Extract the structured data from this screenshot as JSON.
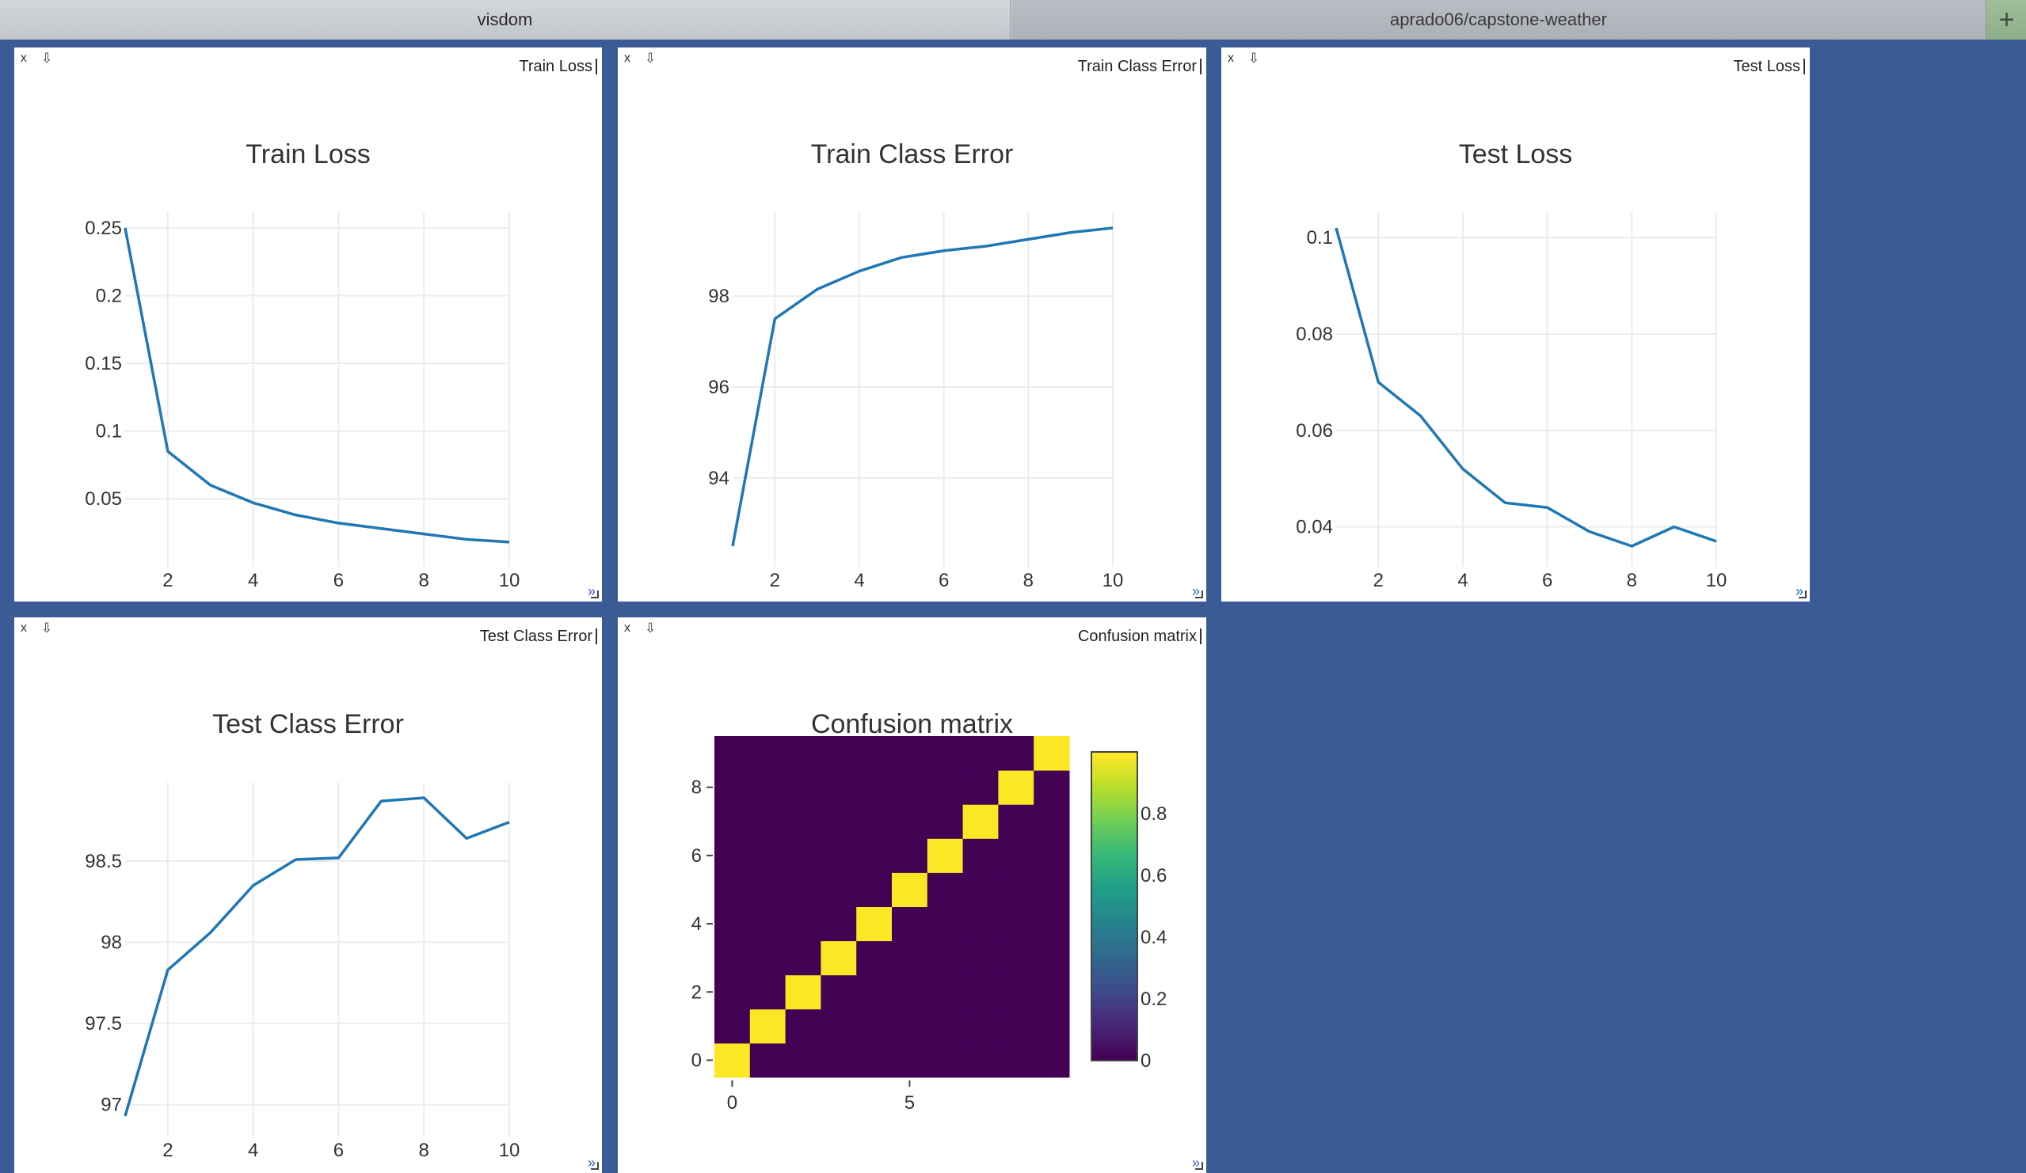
{
  "tabs": [
    {
      "label": "visdom"
    },
    {
      "label": "aprado06/capstone-weather"
    }
  ],
  "new_tab_label": "+",
  "pane_controls": {
    "close": "x",
    "download": "⇩",
    "resize": "»"
  },
  "panes": [
    {
      "window_title": "Train Loss"
    },
    {
      "window_title": "Train Class Error"
    },
    {
      "window_title": "Test Loss"
    },
    {
      "window_title": "Test Class Error"
    },
    {
      "window_title": "Confusion matrix"
    }
  ],
  "colors": {
    "line": "#1f77b4",
    "background": "#3b5b97"
  },
  "chart_data": [
    {
      "type": "line",
      "title": "Train Loss",
      "x": [
        1,
        2,
        3,
        4,
        5,
        6,
        7,
        8,
        9,
        10
      ],
      "series": [
        {
          "values": [
            0.25,
            0.085,
            0.06,
            0.047,
            0.038,
            0.032,
            0.028,
            0.024,
            0.02,
            0.018
          ]
        }
      ],
      "xlim": [
        1,
        10
      ],
      "ylim": [
        0.015,
        0.25
      ],
      "xticks": [
        2,
        4,
        6,
        8,
        10
      ],
      "yticks": [
        0.05,
        0.1,
        0.15,
        0.2,
        0.25
      ],
      "xtick_labels": [
        "2",
        "4",
        "6",
        "8",
        "10"
      ],
      "ytick_labels": [
        "0.05",
        "0.1",
        "0.15",
        "0.2",
        "0.25"
      ],
      "grid": true
    },
    {
      "type": "line",
      "title": "Train Class Error",
      "x": [
        1,
        2,
        3,
        4,
        5,
        6,
        7,
        8,
        9,
        10
      ],
      "series": [
        {
          "values": [
            92.5,
            97.5,
            98.15,
            98.55,
            98.85,
            99.0,
            99.1,
            99.25,
            99.4,
            99.5
          ]
        }
      ],
      "xlim": [
        1,
        10
      ],
      "ylim": [
        92.5,
        99.5
      ],
      "xticks": [
        2,
        4,
        6,
        8,
        10
      ],
      "yticks": [
        94,
        96,
        98
      ],
      "xtick_labels": [
        "2",
        "4",
        "6",
        "8",
        "10"
      ],
      "ytick_labels": [
        "94",
        "96",
        "98"
      ],
      "grid": true
    },
    {
      "type": "line",
      "title": "Test Loss",
      "x": [
        1,
        2,
        3,
        4,
        5,
        6,
        7,
        8,
        9,
        10
      ],
      "series": [
        {
          "values": [
            0.102,
            0.07,
            0.063,
            0.052,
            0.045,
            0.044,
            0.039,
            0.036,
            0.04,
            0.037
          ]
        }
      ],
      "xlim": [
        1,
        10
      ],
      "ylim": [
        0.036,
        0.102
      ],
      "xticks": [
        2,
        4,
        6,
        8,
        10
      ],
      "yticks": [
        0.04,
        0.06,
        0.08,
        0.1
      ],
      "xtick_labels": [
        "2",
        "4",
        "6",
        "8",
        "10"
      ],
      "ytick_labels": [
        "0.04",
        "0.06",
        "0.08",
        "0.1"
      ],
      "grid": true
    },
    {
      "type": "line",
      "title": "Test Class Error",
      "x": [
        1,
        2,
        3,
        4,
        5,
        6,
        7,
        8,
        9,
        10
      ],
      "series": [
        {
          "values": [
            96.93,
            97.83,
            98.06,
            98.35,
            98.51,
            98.52,
            98.87,
            98.89,
            98.64,
            98.74
          ]
        }
      ],
      "xlim": [
        1,
        10
      ],
      "ylim": [
        96.93,
        98.89
      ],
      "xticks": [
        2,
        4,
        6,
        8,
        10
      ],
      "yticks": [
        97,
        97.5,
        98,
        98.5
      ],
      "xtick_labels": [
        "2",
        "4",
        "6",
        "8",
        "10"
      ],
      "ytick_labels": [
        "97",
        "97.5",
        "98",
        "98.5"
      ],
      "grid": true
    },
    {
      "type": "heatmap",
      "title": "Confusion matrix",
      "colorscale": "viridis",
      "size": 10,
      "values": [
        [
          1,
          0,
          0,
          0,
          0,
          0,
          0,
          0,
          0,
          0
        ],
        [
          0,
          1,
          0,
          0,
          0,
          0,
          0,
          0,
          0,
          0
        ],
        [
          0,
          0,
          1,
          0,
          0,
          0,
          0,
          0,
          0,
          0
        ],
        [
          0,
          0,
          0,
          1,
          0,
          0,
          0,
          0,
          0,
          0
        ],
        [
          0,
          0,
          0,
          0,
          1,
          0,
          0,
          0,
          0,
          0
        ],
        [
          0,
          0,
          0,
          0,
          0,
          1,
          0,
          0,
          0,
          0
        ],
        [
          0,
          0,
          0,
          0,
          0,
          0,
          1,
          0,
          0,
          0
        ],
        [
          0,
          0,
          0,
          0,
          0,
          0,
          0,
          1,
          0,
          0
        ],
        [
          0,
          0,
          0,
          0,
          0,
          0,
          0,
          0,
          1,
          0
        ],
        [
          0,
          0,
          0,
          0,
          0,
          0,
          0,
          0,
          0,
          1
        ]
      ],
      "xticks": [
        0,
        5
      ],
      "yticks": [
        0,
        2,
        4,
        6,
        8
      ],
      "xtick_labels": [
        "0",
        "5"
      ],
      "ytick_labels": [
        "0",
        "2",
        "4",
        "6",
        "8"
      ],
      "colorbar_ticks": [
        0,
        0.2,
        0.4,
        0.6,
        0.8
      ],
      "colorbar_labels": [
        "0",
        "0.2",
        "0.4",
        "0.6",
        "0.8"
      ],
      "zlim": [
        0,
        1
      ]
    }
  ]
}
